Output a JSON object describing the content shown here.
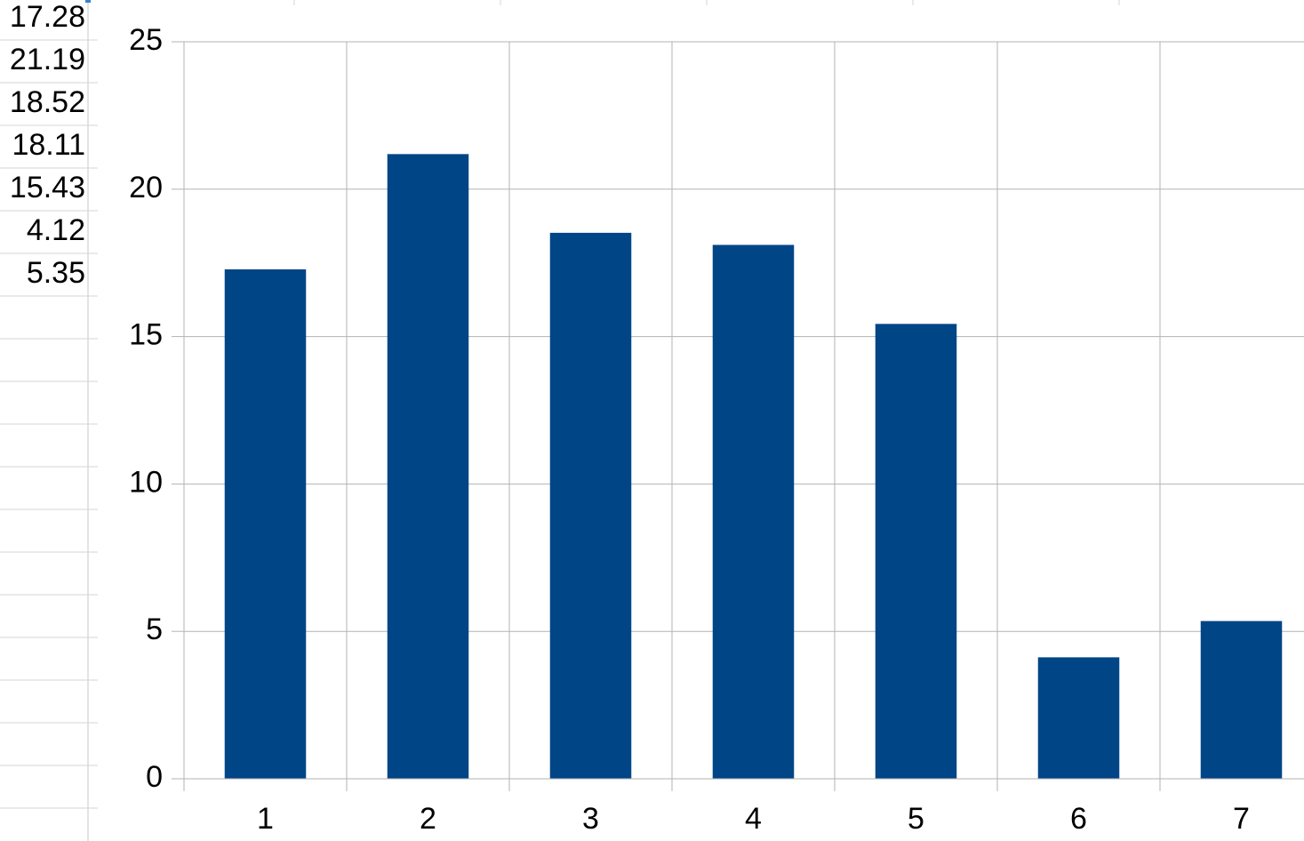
{
  "cells": [
    17.28,
    21.19,
    18.52,
    18.11,
    15.43,
    4.12,
    5.35
  ],
  "chart_data": {
    "type": "bar",
    "categories": [
      "1",
      "2",
      "3",
      "4",
      "5",
      "6",
      "7"
    ],
    "values": [
      17.28,
      21.19,
      18.52,
      18.11,
      15.43,
      4.12,
      5.35
    ],
    "color": "#004586",
    "ylim": [
      0,
      25
    ],
    "yticks": [
      0,
      5,
      10,
      15,
      20,
      25
    ],
    "grid": true
  }
}
